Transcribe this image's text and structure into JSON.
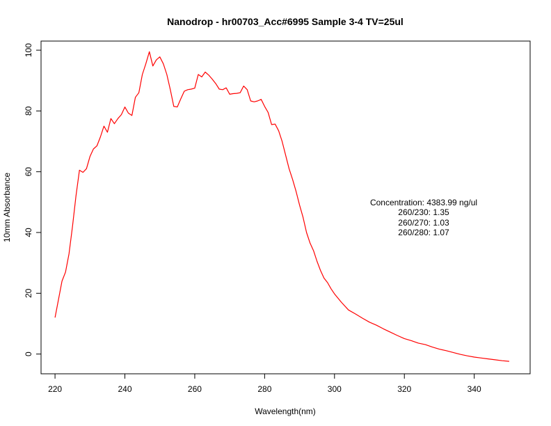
{
  "chart_data": {
    "type": "line",
    "title": "Nanodrop - hr00703_Acc#6995  Sample 3-4  TV=25ul",
    "xlabel": "Wavelength(nm)",
    "ylabel": "10mm Absorbance",
    "xlim": [
      216,
      356
    ],
    "ylim": [
      -6.5,
      103
    ],
    "xticks": [
      220,
      240,
      260,
      280,
      300,
      320,
      340
    ],
    "yticks": [
      0,
      20,
      40,
      60,
      80,
      100
    ],
    "grid": false,
    "series": [
      {
        "color": "#ff0000",
        "x": [
          220,
          221,
          222,
          223,
          224,
          225,
          226,
          227,
          228,
          229,
          230,
          231,
          232,
          233,
          234,
          235,
          236,
          237,
          238,
          239,
          240,
          241,
          242,
          243,
          244,
          245,
          246,
          247,
          248,
          249,
          250,
          251,
          252,
          253,
          254,
          255,
          256,
          257,
          258,
          259,
          260,
          261,
          262,
          263,
          264,
          265,
          266,
          267,
          268,
          269,
          270,
          271,
          272,
          273,
          274,
          275,
          276,
          277,
          278,
          279,
          280,
          281,
          282,
          283,
          284,
          285,
          286,
          287,
          288,
          289,
          290,
          291,
          292,
          293,
          294,
          295,
          296,
          297,
          298,
          299,
          300,
          302,
          304,
          306,
          308,
          310,
          312,
          314,
          316,
          318,
          320,
          322,
          324,
          326,
          328,
          330,
          332,
          334,
          336,
          338,
          340,
          342,
          344,
          346,
          348,
          350
        ],
        "y": [
          12,
          18,
          24,
          27,
          33,
          42,
          52,
          60.5,
          59.8,
          61,
          65,
          67.5,
          68.5,
          71.5,
          75,
          73,
          77.5,
          75.8,
          77.5,
          78.8,
          81.3,
          79.3,
          78.5,
          84.5,
          86,
          92,
          95.5,
          99.5,
          94.8,
          96.8,
          97.8,
          95.5,
          92,
          87,
          81.5,
          81.3,
          84,
          86.5,
          87,
          87.2,
          87.5,
          92,
          91.2,
          92.8,
          91.8,
          90.5,
          89,
          87.2,
          87,
          87.6,
          85.5,
          85.7,
          85.8,
          86,
          88.2,
          87,
          83.3,
          83,
          83.3,
          83.8,
          81.5,
          79.5,
          75.5,
          75.7,
          73.5,
          70,
          65.5,
          61,
          57.5,
          53.5,
          49,
          45,
          40,
          36.5,
          34,
          30.5,
          27.5,
          25,
          23.5,
          21.5,
          19.8,
          17,
          14.5,
          13.2,
          11.8,
          10.5,
          9.5,
          8.3,
          7.2,
          6.1,
          5.1,
          4.4,
          3.6,
          3.1,
          2.3,
          1.6,
          1.1,
          0.5,
          -0.1,
          -0.6,
          -1,
          -1.3,
          -1.6,
          -1.9,
          -2.2,
          -2.4
        ]
      }
    ],
    "annotations": [
      "Concentration: 4383.99 ng/ul",
      "260/230: 1.35",
      "260/270: 1.03",
      "260/280: 1.07"
    ]
  }
}
